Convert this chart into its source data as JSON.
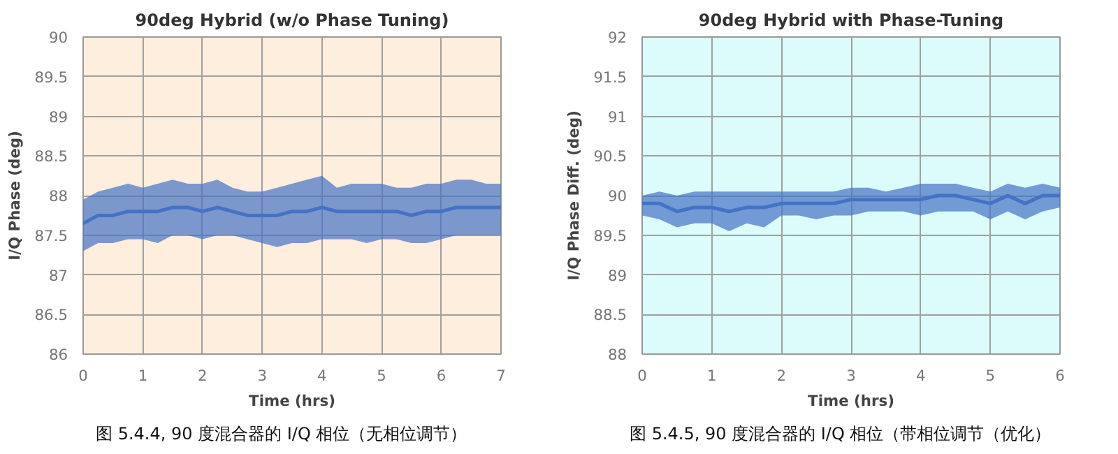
{
  "chart_data": [
    {
      "type": "line",
      "title": "90deg Hybrid (w/o Phase Tuning)",
      "xlabel": "Time (hrs)",
      "ylabel": "I/Q Phase (deg)",
      "xlim": [
        0,
        7
      ],
      "xticks": [
        0,
        1,
        2,
        3,
        4,
        5,
        6,
        7
      ],
      "ylim": [
        86,
        90
      ],
      "yticks": [
        86,
        86.5,
        87,
        87.5,
        88,
        88.5,
        89,
        89.5,
        90
      ],
      "grid": true,
      "x": [
        0,
        0.25,
        0.5,
        0.75,
        1,
        1.25,
        1.5,
        1.75,
        2,
        2.25,
        2.5,
        2.75,
        3,
        3.25,
        3.5,
        3.75,
        4,
        4.25,
        4.5,
        4.75,
        5,
        5.25,
        5.5,
        5.75,
        6,
        6.25,
        6.5,
        6.75,
        7
      ],
      "series": [
        {
          "color": "#4472c4",
          "values": [
            87.65,
            87.75,
            87.75,
            87.8,
            87.8,
            87.8,
            87.85,
            87.85,
            87.8,
            87.85,
            87.8,
            87.75,
            87.75,
            87.75,
            87.8,
            87.8,
            87.85,
            87.8,
            87.8,
            87.8,
            87.8,
            87.8,
            87.75,
            87.8,
            87.8,
            87.85,
            87.85,
            87.85,
            87.85
          ],
          "lower": [
            87.3,
            87.4,
            87.4,
            87.45,
            87.45,
            87.4,
            87.5,
            87.5,
            87.45,
            87.5,
            87.5,
            87.45,
            87.4,
            87.35,
            87.4,
            87.4,
            87.45,
            87.45,
            87.45,
            87.4,
            87.45,
            87.45,
            87.4,
            87.4,
            87.45,
            87.5,
            87.5,
            87.5,
            87.5
          ],
          "upper": [
            87.95,
            88.05,
            88.1,
            88.15,
            88.1,
            88.15,
            88.2,
            88.15,
            88.15,
            88.2,
            88.1,
            88.05,
            88.05,
            88.1,
            88.15,
            88.2,
            88.25,
            88.1,
            88.15,
            88.15,
            88.15,
            88.1,
            88.1,
            88.15,
            88.15,
            88.2,
            88.2,
            88.15,
            88.15
          ]
        }
      ],
      "annotations": [
        "图  5.4.4, 90  度混合器的  I/Q  相位（无相位调节）"
      ]
    },
    {
      "type": "line",
      "title": "90deg Hybrid with Phase-Tuning",
      "xlabel": "Time (hrs)",
      "ylabel": "I/Q Phase Diff. (deg)",
      "xlim": [
        0,
        6
      ],
      "xticks": [
        0,
        1,
        2,
        3,
        4,
        5,
        6
      ],
      "ylim": [
        88,
        92
      ],
      "yticks": [
        88,
        88.5,
        89,
        89.5,
        90,
        90.5,
        91,
        91.5,
        92
      ],
      "grid": true,
      "x": [
        0,
        0.25,
        0.5,
        0.75,
        1,
        1.25,
        1.5,
        1.75,
        2,
        2.25,
        2.5,
        2.75,
        3,
        3.25,
        3.5,
        3.75,
        4,
        4.25,
        4.5,
        4.75,
        5,
        5.25,
        5.5,
        5.75,
        6
      ],
      "series": [
        {
          "color": "#4472c4",
          "values": [
            89.9,
            89.9,
            89.8,
            89.85,
            89.85,
            89.8,
            89.85,
            89.85,
            89.9,
            89.9,
            89.9,
            89.9,
            89.95,
            89.95,
            89.95,
            89.95,
            89.95,
            90.0,
            90.0,
            89.95,
            89.9,
            90.0,
            89.9,
            90.0,
            90.0
          ],
          "lower": [
            89.75,
            89.7,
            89.6,
            89.65,
            89.65,
            89.55,
            89.65,
            89.6,
            89.75,
            89.75,
            89.7,
            89.75,
            89.75,
            89.8,
            89.8,
            89.8,
            89.75,
            89.8,
            89.8,
            89.8,
            89.7,
            89.8,
            89.7,
            89.8,
            89.85
          ],
          "upper": [
            90.0,
            90.05,
            90.0,
            90.05,
            90.05,
            90.05,
            90.05,
            90.05,
            90.05,
            90.05,
            90.05,
            90.05,
            90.1,
            90.1,
            90.05,
            90.1,
            90.15,
            90.15,
            90.15,
            90.1,
            90.05,
            90.15,
            90.1,
            90.15,
            90.1
          ]
        }
      ],
      "annotations": [
        "图  5.4.5, 90  度混合器的  I/Q  相位（带相位调节（优化）"
      ]
    }
  ]
}
